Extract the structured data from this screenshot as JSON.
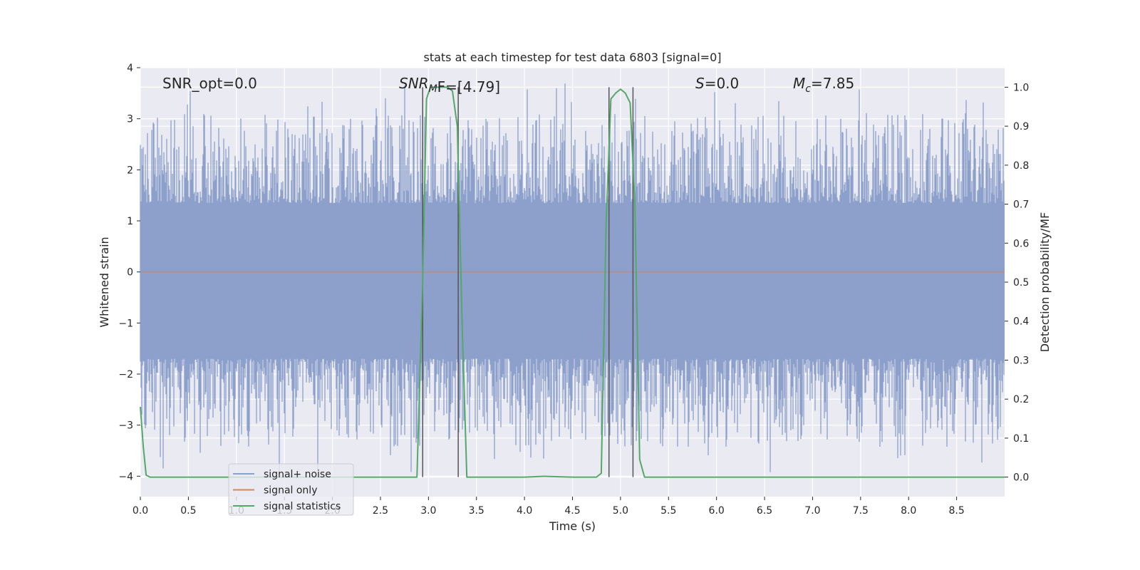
{
  "chart_data": {
    "type": "line",
    "title": "stats at each timestep for test data 6803 [signal=0]",
    "xlabel": "Time (s)",
    "ylabel": "Whitened strain",
    "y2label": "Detection probability/MF",
    "xlim": [
      0.0,
      9.0
    ],
    "ylim": [
      -4.4,
      4.0
    ],
    "y2lim": [
      -0.05,
      1.05
    ],
    "xticks": [
      "0.0",
      "0.5",
      "1.0",
      "1.5",
      "2.0",
      "2.5",
      "3.0",
      "3.5",
      "4.0",
      "4.5",
      "5.0",
      "5.5",
      "6.0",
      "6.5",
      "7.0",
      "7.5",
      "8.0",
      "8.5"
    ],
    "yticks": [
      "4",
      "3",
      "2",
      "1",
      "0",
      "−1",
      "−2",
      "−3",
      "−4"
    ],
    "y2ticks": [
      "1.0",
      "0.9",
      "0.8",
      "0.7",
      "0.6",
      "0.5",
      "0.4",
      "0.3",
      "0.2",
      "0.1",
      "0.0"
    ],
    "grid": true,
    "legend_position": "lower-left",
    "annotations": {
      "snr_opt": "SNR_opt=0.0",
      "snr_mf_symbol": "SNR",
      "snr_mf_sub": "M",
      "snr_mf_rest": "F=[4.79]",
      "s_symbol": "S",
      "s_rest": "=0.0",
      "mc_symbol": "M",
      "mc_sub": "c",
      "mc_rest": "=7.85"
    },
    "series": [
      {
        "name": "signal+ noise",
        "color": "#8da0cb",
        "kind": "noise",
        "envelope": {
          "typical_range": [
            -1.7,
            1.35
          ],
          "min": -4.0,
          "max": 3.7
        }
      },
      {
        "name": "signal only",
        "color": "#dd8452",
        "x": [
          0.0,
          9.0
        ],
        "y": [
          0.0,
          0.0
        ]
      },
      {
        "name": "signal statistics",
        "color": "#55a868",
        "axis": "right",
        "x": [
          0.0,
          0.03,
          0.06,
          0.1,
          0.15,
          0.5,
          1.0,
          1.5,
          2.0,
          2.5,
          2.88,
          2.94,
          2.98,
          3.02,
          3.1,
          3.2,
          3.25,
          3.3,
          3.35,
          3.4,
          3.5,
          4.0,
          4.2,
          4.5,
          4.75,
          4.8,
          4.85,
          4.9,
          4.95,
          5.0,
          5.05,
          5.1,
          5.15,
          5.2,
          5.25,
          5.5,
          6.0,
          7.0,
          8.0,
          9.0
        ],
        "y": [
          0.18,
          0.08,
          0.005,
          0.0,
          0.0,
          0.0,
          0.0,
          0.0,
          0.0,
          0.0,
          0.0,
          0.5,
          0.97,
          1.0,
          1.0,
          1.0,
          0.99,
          0.9,
          0.4,
          0.0,
          0.0,
          0.0,
          0.002,
          0.0,
          0.0,
          0.01,
          0.65,
          0.97,
          0.985,
          0.995,
          0.985,
          0.96,
          0.7,
          0.045,
          0.0,
          0.0,
          0.0,
          0.0,
          0.0,
          0.0
        ]
      }
    ],
    "vertical_markers_x": [
      2.94,
      3.31,
      4.88,
      5.13
    ],
    "vertical_marker_color": "#555555"
  }
}
